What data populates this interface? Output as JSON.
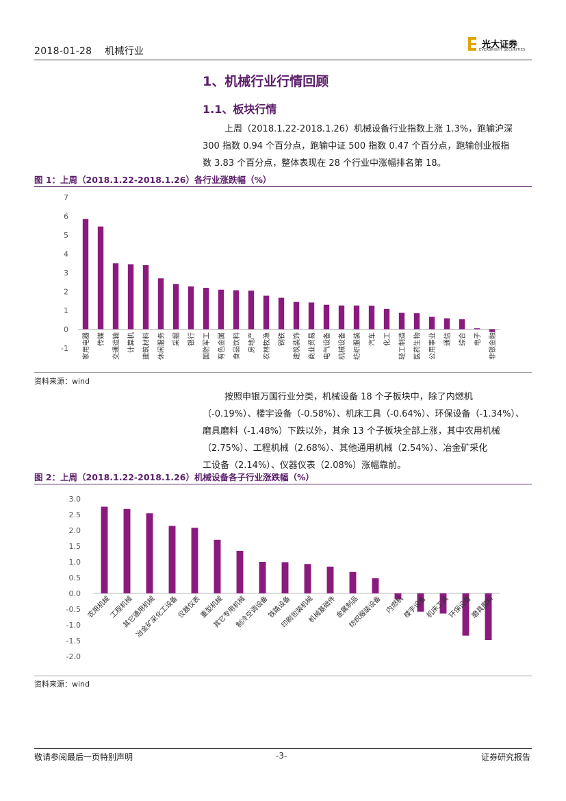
{
  "header": {
    "date": "2018-01-28",
    "industry": "机械行业",
    "logo_name": "光大证券",
    "logo_en": "EVERBRIGHT SECURITIES"
  },
  "section": {
    "h1": "1、机械行业行情回顾",
    "h2": "1.1、板块行情"
  },
  "para1": [
    "上周（2018.1.22-2018.1.26）机械设备行业指数上涨 1.3%，跑输沪深",
    "300 指数 0.94 个百分点，跑输中证 500 指数 0.47 个百分点，跑输创业板指",
    "数 3.83 个百分点，整体表现在 28 个行业中涨幅排名第 18。"
  ],
  "para2": [
    "按照申银万国行业分类，机械设备 18 个子板块中，除了内燃机",
    "（-0.19%）、楼宇设备（-0.58%）、机床工具（-0.64%）、环保设备（-1.34%）、",
    "磨具磨料（-1.48%）下跌以外，其余 13 个子板块全部上涨，其中农用机械",
    "（2.75%）、工程机械（2.68%）、其他通用机械（2.54%）、冶金矿采化",
    "工设备（2.14%）、仪器仪表（2.08%）涨幅靠前。"
  ],
  "fig1_title": "图 1：上周（2018.1.22-2018.1.26）各行业涨跌幅（%）",
  "fig2_title": "图 2：上周（2018.1.22-2018.1.26）机械设备各子行业涨跌幅（%）",
  "source": "资料来源：wind",
  "footer": {
    "left": "敬请参阅最后一页特别声明",
    "page": "-3-",
    "right": "证券研究报告"
  },
  "colors": {
    "bar": "#8b1a7e",
    "title": "#5b1f6a"
  },
  "chart_data": [
    {
      "type": "bar",
      "title": "",
      "categories": [
        "家用电器",
        "传媒",
        "交通运输",
        "计算机",
        "建筑材料",
        "休闲服务",
        "采掘",
        "银行",
        "国防军工",
        "有色金属",
        "食品饮料",
        "房地产",
        "农林牧渔",
        "钢铁",
        "建筑装饰",
        "商业贸易",
        "电气设备",
        "机械设备",
        "纺织服装",
        "汽车",
        "化工",
        "轻工制造",
        "医药生物",
        "公用事业",
        "通信",
        "综合",
        "电子",
        "非银金融"
      ],
      "values": [
        5.85,
        5.45,
        3.5,
        3.45,
        3.4,
        2.7,
        2.4,
        2.27,
        2.2,
        2.1,
        2.07,
        2.05,
        1.78,
        1.67,
        1.45,
        1.42,
        1.3,
        1.26,
        1.26,
        1.25,
        1.08,
        0.87,
        0.85,
        0.66,
        0.58,
        0.53,
        0.05,
        -0.15
      ],
      "ylim": [
        -1,
        7
      ],
      "yticks": [
        -1,
        0,
        1,
        2,
        3,
        4,
        5,
        6,
        7
      ],
      "xlabel": "",
      "ylabel": "",
      "grid": false
    },
    {
      "type": "bar",
      "title": "",
      "categories": [
        "农用机械",
        "工程机械",
        "其它通用机械",
        "冶金矿采化工设备",
        "仪器仪表",
        "重型机械",
        "其它专用机械",
        "制冷空调设备",
        "铁路设备",
        "印刷包装机械",
        "机械基础件",
        "金属制品",
        "纺织服装设备",
        "内燃机",
        "楼宇设备",
        "机床工具",
        "环保设备",
        "磨具磨料"
      ],
      "values": [
        2.75,
        2.68,
        2.54,
        2.14,
        2.08,
        1.7,
        1.35,
        1.0,
        0.99,
        0.93,
        0.85,
        0.68,
        0.48,
        -0.19,
        -0.58,
        -0.64,
        -1.34,
        -1.48
      ],
      "ylim": [
        -2,
        3
      ],
      "yticks": [
        "-2.0",
        "-1.5",
        "-1.0",
        "-0.5",
        "0.0",
        "0.5",
        "1.0",
        "1.5",
        "2.0",
        "2.5",
        "3.0"
      ],
      "xlabel": "",
      "ylabel": "",
      "grid": false
    }
  ]
}
